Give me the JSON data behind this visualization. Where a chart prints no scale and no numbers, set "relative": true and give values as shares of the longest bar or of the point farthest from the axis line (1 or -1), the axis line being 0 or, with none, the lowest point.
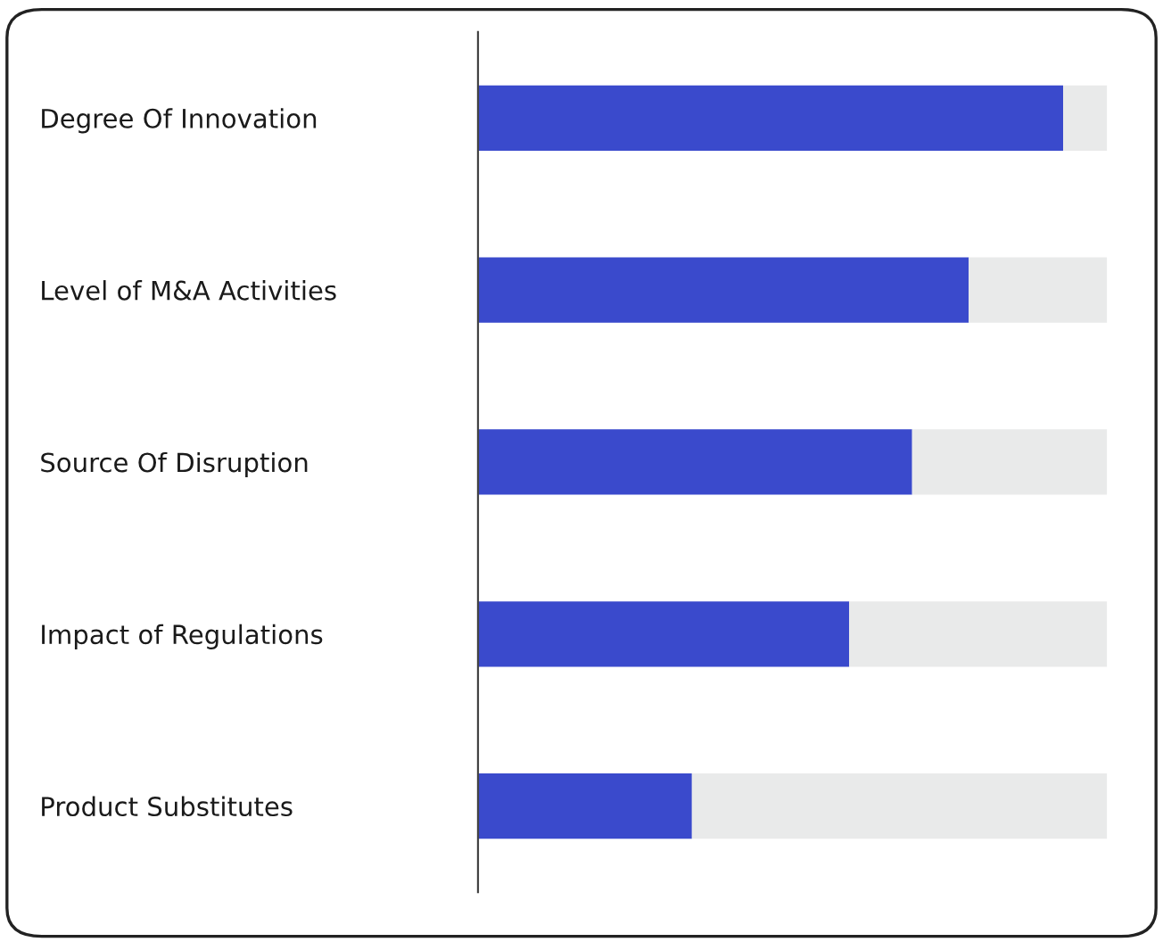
{
  "chart_data": {
    "type": "bar",
    "orientation": "horizontal",
    "stacked": true,
    "relative": true,
    "categories": [
      "Degree Of Innovation",
      "Level of M&A Activities",
      "Source Of Disruption",
      "Impact of Regulations",
      "Product Substitutes"
    ],
    "series": [
      {
        "color": "#3a4acc",
        "values": [
          0.93,
          0.78,
          0.69,
          0.59,
          0.34
        ]
      },
      {
        "color": "#e9eaea",
        "values": [
          0.07,
          0.22,
          0.31,
          0.41,
          0.66
        ]
      }
    ],
    "grid": false
  }
}
